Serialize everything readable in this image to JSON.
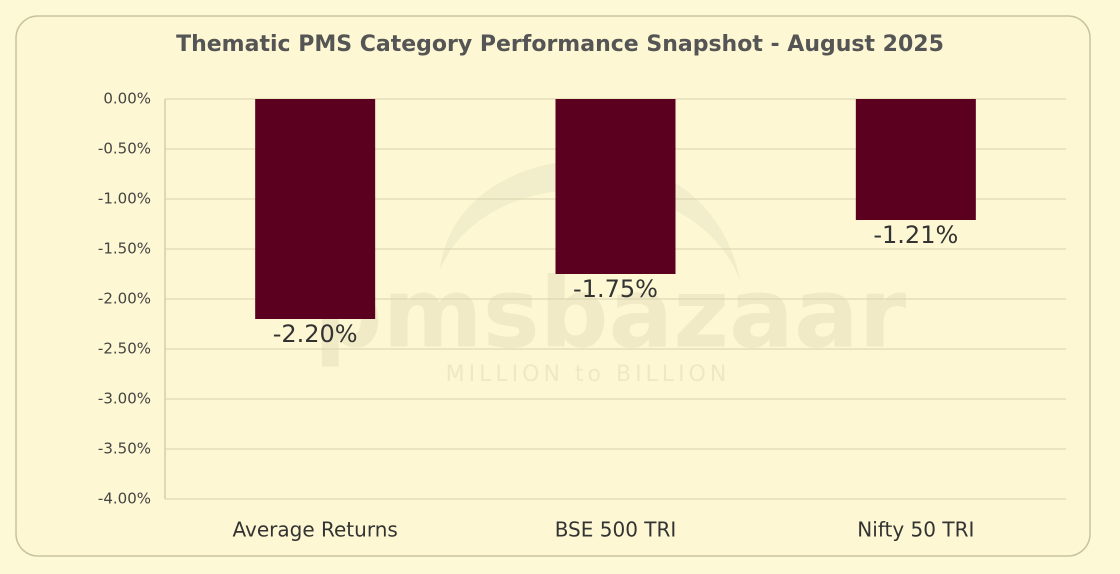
{
  "chart_data": {
    "type": "bar",
    "title": "Thematic PMS Category Performance Snapshot - August 2025",
    "categories": [
      "Average Returns",
      "BSE 500 TRI",
      "Nifty 50 TRI"
    ],
    "values": [
      -2.2,
      -1.75,
      -1.21
    ],
    "value_labels": [
      "-2.20%",
      "-1.75%",
      "-1.21%"
    ],
    "color": "#5c0020",
    "ylim": [
      -4,
      0
    ],
    "yticks": [
      {
        "value": 0,
        "label": "0.00%"
      },
      {
        "value": -0.5,
        "label": "-0.50%"
      },
      {
        "value": -1,
        "label": "-1.00%"
      },
      {
        "value": -1.5,
        "label": "-1.50%"
      },
      {
        "value": -2,
        "label": "-2.00%"
      },
      {
        "value": -2.5,
        "label": "-2.50%"
      },
      {
        "value": -3,
        "label": "-3.00%"
      },
      {
        "value": -3.5,
        "label": "-3.50%"
      },
      {
        "value": -4,
        "label": "-4.00%"
      }
    ],
    "grid": true,
    "watermark": {
      "brand": "pmsbazaar",
      "tagline": "MILLION to BILLION"
    }
  }
}
